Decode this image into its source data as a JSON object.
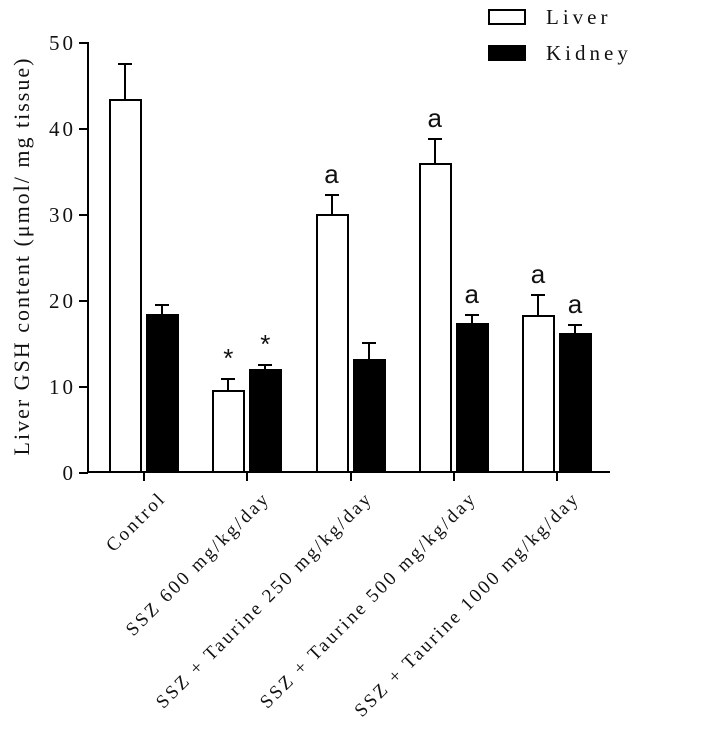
{
  "chart_data": {
    "type": "bar",
    "title": "",
    "ylabel": "Liver GSH content (μmol/ mg tissue)",
    "xlabel": "",
    "ylim": [
      0,
      50
    ],
    "yticks": [
      0,
      10,
      20,
      30,
      40,
      50
    ],
    "grid": false,
    "legend_position": "top-right",
    "categories": [
      "Control",
      "SSZ 600 mg/kg/day",
      "SSZ + Taurine 250 mg/kg/day",
      "SSZ + Taurine 500 mg/kg/day",
      "SSZ + Taurine 1000 mg/kg/day"
    ],
    "series": [
      {
        "name": "Liver",
        "fill": "#ffffff",
        "values": [
          43.5,
          9.7,
          30.1,
          36.0,
          18.4
        ],
        "errors": [
          4.1,
          1.2,
          2.2,
          2.8,
          2.3
        ],
        "annotations": [
          "",
          "*",
          "a",
          "a",
          "a"
        ]
      },
      {
        "name": "Kidney",
        "fill": "#000000",
        "values": [
          18.5,
          12.1,
          13.3,
          17.4,
          16.3
        ],
        "errors": [
          1.0,
          0.5,
          1.8,
          1.0,
          0.9
        ],
        "annotations": [
          "",
          "*",
          "",
          "a",
          "a"
        ]
      }
    ]
  },
  "colors": {
    "background": "#ffffff",
    "axis": "#000000",
    "bar_outline": "#000000",
    "text": "#111111"
  }
}
